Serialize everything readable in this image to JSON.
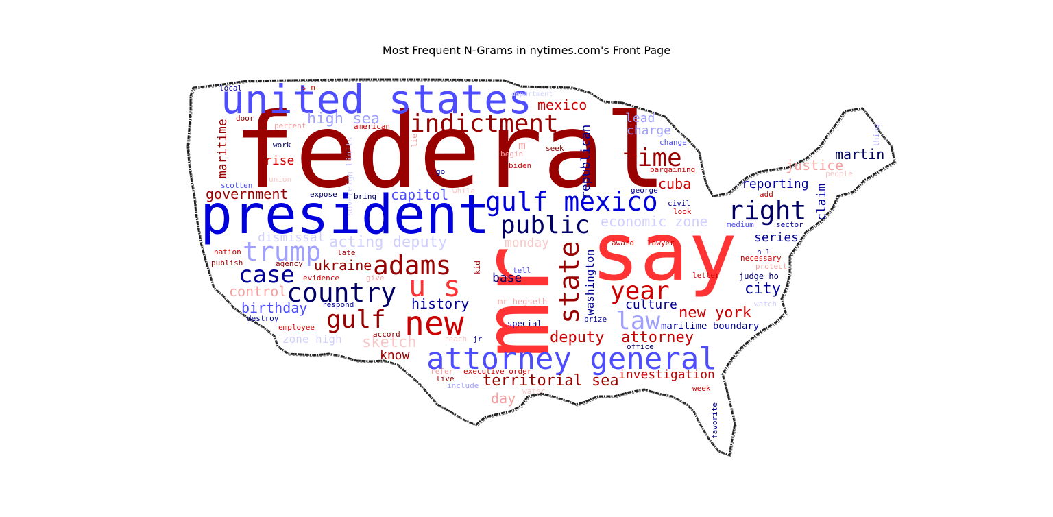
{
  "title": "Most Frequent N-Grams in nytimes.com's Front Page",
  "colors": {
    "dark_red": "#990000",
    "red": "#cc0000",
    "bright_red": "#ff3333",
    "light_red": "#f4a0a0",
    "pale_red": "#f8c8c8",
    "dark_blue": "#000066",
    "navy": "#000099",
    "blue": "#0000dd",
    "medium_blue": "#4d4dff",
    "light_blue": "#a0a0ff",
    "pale_blue": "#d0d0ff"
  },
  "words": [
    {
      "text": "federal",
      "color": "dark_red"
    },
    {
      "text": "president",
      "color": "blue"
    },
    {
      "text": "say",
      "color": "bright_red"
    },
    {
      "text": "mr",
      "color": "bright_red"
    },
    {
      "text": "united states",
      "color": "medium_blue"
    },
    {
      "text": "attorney general",
      "color": "medium_blue"
    },
    {
      "text": "indictment",
      "color": "dark_red"
    },
    {
      "text": "gulf mexico",
      "color": "blue"
    },
    {
      "text": "new",
      "color": "red"
    },
    {
      "text": "country",
      "color": "dark_blue"
    },
    {
      "text": "adams",
      "color": "dark_red"
    },
    {
      "text": "u s",
      "color": "bright_red"
    },
    {
      "text": "public",
      "color": "dark_blue"
    },
    {
      "text": "right",
      "color": "dark_blue"
    },
    {
      "text": "state",
      "color": "dark_red"
    },
    {
      "text": "time",
      "color": "dark_red"
    },
    {
      "text": "year",
      "color": "red"
    },
    {
      "text": "trump",
      "color": "light_blue"
    },
    {
      "text": "case",
      "color": "navy"
    },
    {
      "text": "gulf",
      "color": "dark_red"
    },
    {
      "text": "law",
      "color": "light_blue"
    },
    {
      "text": "mexico",
      "color": "red"
    },
    {
      "text": "high sea",
      "color": "light_blue"
    },
    {
      "text": "government",
      "color": "dark_red"
    },
    {
      "text": "capitol",
      "color": "medium_blue"
    },
    {
      "text": "cuba",
      "color": "red"
    },
    {
      "text": "lead",
      "color": "light_blue"
    },
    {
      "text": "charge",
      "color": "light_blue"
    },
    {
      "text": "justice",
      "color": "light_red"
    },
    {
      "text": "martin",
      "color": "dark_blue"
    },
    {
      "text": "reporting",
      "color": "navy"
    },
    {
      "text": "claim",
      "color": "navy"
    },
    {
      "text": "series",
      "color": "navy"
    },
    {
      "text": "economic zone",
      "color": "pale_blue"
    },
    {
      "text": "ukraine",
      "color": "dark_red"
    },
    {
      "text": "base",
      "color": "dark_blue"
    },
    {
      "text": "history",
      "color": "navy"
    },
    {
      "text": "birthday",
      "color": "medium_blue"
    },
    {
      "text": "control",
      "color": "light_red"
    },
    {
      "text": "culture",
      "color": "navy"
    },
    {
      "text": "new york",
      "color": "red"
    },
    {
      "text": "city",
      "color": "navy"
    },
    {
      "text": "deputy",
      "color": "red"
    },
    {
      "text": "attorney",
      "color": "red"
    },
    {
      "text": "know",
      "color": "dark_red"
    },
    {
      "text": "sketch",
      "color": "pale_red"
    },
    {
      "text": "zone high",
      "color": "pale_blue"
    },
    {
      "text": "territorial sea",
      "color": "dark_red"
    },
    {
      "text": "investigation",
      "color": "red"
    },
    {
      "text": "day",
      "color": "light_red"
    },
    {
      "text": "maritime",
      "color": "dark_red"
    },
    {
      "text": "rise",
      "color": "red"
    },
    {
      "text": "republican",
      "color": "navy"
    },
    {
      "text": "washington",
      "color": "navy"
    },
    {
      "text": "monday",
      "color": "pale_red"
    },
    {
      "text": "dismissal",
      "color": "pale_blue"
    },
    {
      "text": "acting deputy",
      "color": "pale_blue"
    },
    {
      "text": "maritime boundary",
      "color": "navy"
    },
    {
      "text": "judge ho",
      "color": "dark_blue"
    },
    {
      "text": "mr hegseth",
      "color": "light_red"
    },
    {
      "text": "special",
      "color": "navy"
    },
    {
      "text": "executive order",
      "color": "red"
    },
    {
      "text": "sovereign limits",
      "color": "pale_blue"
    },
    {
      "text": "bargaining",
      "color": "red"
    },
    {
      "text": "department",
      "color": "pale_blue"
    },
    {
      "text": "local",
      "color": "navy"
    },
    {
      "text": "s n",
      "color": "red"
    },
    {
      "text": "door",
      "color": "dark_red"
    },
    {
      "text": "percent",
      "color": "light_red"
    },
    {
      "text": "american",
      "color": "red"
    },
    {
      "text": "work",
      "color": "dark_blue"
    },
    {
      "text": "union",
      "color": "pale_red"
    },
    {
      "text": "scotten",
      "color": "medium_blue"
    },
    {
      "text": "expose",
      "color": "dark_blue"
    },
    {
      "text": "bring",
      "color": "dark_blue"
    },
    {
      "text": "go",
      "color": "navy"
    },
    {
      "text": "m",
      "color": "light_red"
    },
    {
      "text": "begin",
      "color": "light_red"
    },
    {
      "text": "seek",
      "color": "dark_red"
    },
    {
      "text": "biden",
      "color": "red"
    },
    {
      "text": "lie",
      "color": "light_red"
    },
    {
      "text": "change",
      "color": "medium_blue"
    },
    {
      "text": "george",
      "color": "navy"
    },
    {
      "text": "civil",
      "color": "navy"
    },
    {
      "text": "look",
      "color": "red"
    },
    {
      "text": "add",
      "color": "red"
    },
    {
      "text": "people",
      "color": "pale_red"
    },
    {
      "text": "medium",
      "color": "medium_blue"
    },
    {
      "text": "sector",
      "color": "navy"
    },
    {
      "text": "n l",
      "color": "navy"
    },
    {
      "text": "necessary",
      "color": "red"
    },
    {
      "text": "protect",
      "color": "light_red"
    },
    {
      "text": "letter",
      "color": "red"
    },
    {
      "text": "watch",
      "color": "pale_blue"
    },
    {
      "text": "award",
      "color": "red"
    },
    {
      "text": "lawyer",
      "color": "red"
    },
    {
      "text": "tell",
      "color": "medium_blue"
    },
    {
      "text": "prize",
      "color": "navy"
    },
    {
      "text": "kid",
      "color": "dark_red"
    },
    {
      "text": "nation",
      "color": "red"
    },
    {
      "text": "late",
      "color": "dark_red"
    },
    {
      "text": "publish",
      "color": "dark_red"
    },
    {
      "text": "agency",
      "color": "dark_red"
    },
    {
      "text": "evidence",
      "color": "red"
    },
    {
      "text": "give",
      "color": "light_red"
    },
    {
      "text": "respond",
      "color": "navy"
    },
    {
      "text": "destroy",
      "color": "navy"
    },
    {
      "text": "employee",
      "color": "red"
    },
    {
      "text": "accord",
      "color": "dark_red"
    },
    {
      "text": "jr",
      "color": "navy"
    },
    {
      "text": "reach",
      "color": "pale_red"
    },
    {
      "text": "office",
      "color": "dark_blue"
    },
    {
      "text": "refer",
      "color": "light_red"
    },
    {
      "text": "live",
      "color": "dark_red"
    },
    {
      "text": "include",
      "color": "light_blue"
    },
    {
      "text": "water",
      "color": "pale_red"
    },
    {
      "text": "week",
      "color": "red"
    },
    {
      "text": "favorite",
      "color": "navy"
    },
    {
      "text": "thing",
      "color": "light_blue"
    },
    {
      "text": "while",
      "color": "pale_red"
    }
  ]
}
